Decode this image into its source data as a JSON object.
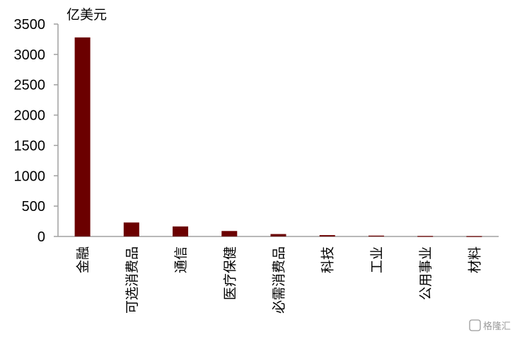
{
  "chart_data": {
    "type": "bar",
    "unit_label": "亿美元",
    "categories": [
      "金融",
      "可选消费品",
      "通信",
      "医疗保健",
      "必需消费品",
      "科技",
      "工业",
      "公用事业",
      "材料"
    ],
    "values": [
      3280,
      230,
      165,
      90,
      40,
      22,
      14,
      8,
      6
    ],
    "ylim": [
      0,
      3500
    ],
    "yticks": [
      0,
      500,
      1000,
      1500,
      2000,
      2500,
      3000,
      3500
    ],
    "grid": false,
    "bar_color": "#6b0000"
  },
  "watermark": {
    "text": "格隆汇"
  }
}
